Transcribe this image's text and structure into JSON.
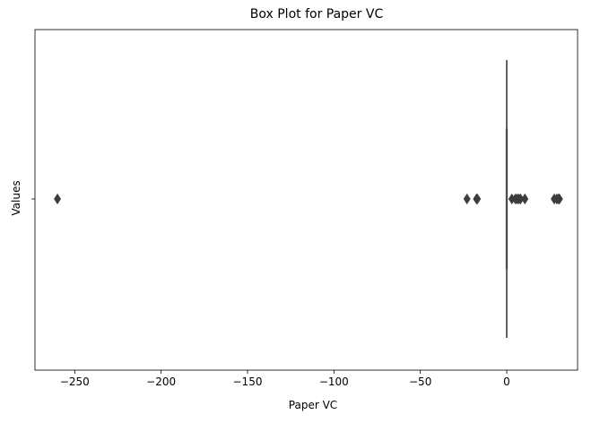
{
  "chart_data": {
    "type": "boxplot",
    "title": "Box Plot for Paper VC",
    "xlabel": "Paper VC",
    "ylabel": "Values",
    "orientation": "horizontal",
    "xlim": [
      -273,
      41
    ],
    "xticks": [
      -250,
      -200,
      -150,
      -100,
      -50,
      0
    ],
    "xtick_labels": [
      "−250",
      "−200",
      "−150",
      "−100",
      "−50",
      "0"
    ],
    "ytick_labels": [
      ""
    ],
    "grid": false,
    "series": [
      {
        "box": {
          "whisker_low": 0,
          "q1": 0,
          "median": 0,
          "q3": 0,
          "whisker_high": 0
        },
        "outliers": [
          -260,
          -23,
          -17.5,
          -17,
          3,
          5,
          6,
          7,
          8,
          10.5,
          27.5,
          29,
          30,
          30.5
        ]
      }
    ],
    "colors": {
      "box": "#4c4c4c",
      "outlier": "#3d3d3d",
      "axis": "#000000"
    }
  }
}
